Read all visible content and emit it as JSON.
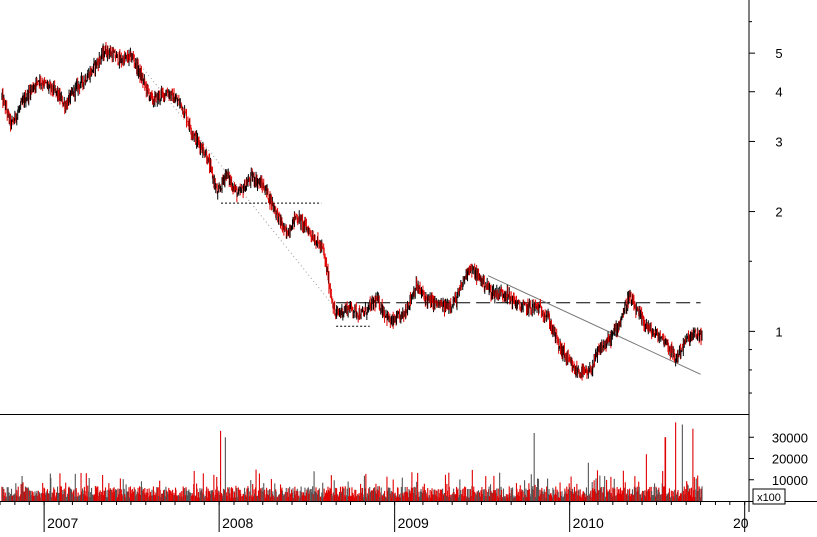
{
  "chart_data": [
    {
      "type": "candlestick",
      "title": "",
      "x_range": [
        "2006-10-01",
        "2011-01-10"
      ],
      "y_scale": "log",
      "ylim": [
        0.62,
        6.8
      ],
      "y_ticks": [
        1,
        2,
        3,
        4,
        5
      ],
      "y_tick_labels": [
        "1",
        "2",
        "3",
        "4",
        "5"
      ],
      "up_color": "#000000",
      "down_color": "#e00000",
      "price_path": [
        [
          "2006-10-05",
          3.9
        ],
        [
          "2006-10-25",
          3.3
        ],
        [
          "2006-11-20",
          3.8
        ],
        [
          "2006-12-20",
          4.3
        ],
        [
          "2007-01-25",
          4.0
        ],
        [
          "2007-02-15",
          3.7
        ],
        [
          "2007-03-10",
          4.1
        ],
        [
          "2007-04-10",
          4.5
        ],
        [
          "2007-05-10",
          5.1
        ],
        [
          "2007-06-10",
          4.8
        ],
        [
          "2007-07-05",
          4.9
        ],
        [
          "2007-07-25",
          4.3
        ],
        [
          "2007-08-15",
          3.8
        ],
        [
          "2007-09-15",
          4.0
        ],
        [
          "2007-10-15",
          3.7
        ],
        [
          "2007-11-10",
          3.1
        ],
        [
          "2007-12-05",
          2.8
        ],
        [
          "2007-12-30",
          2.2
        ],
        [
          "2008-01-15",
          2.5
        ],
        [
          "2008-02-10",
          2.2
        ],
        [
          "2008-03-10",
          2.45
        ],
        [
          "2008-04-05",
          2.3
        ],
        [
          "2008-04-25",
          2.05
        ],
        [
          "2008-05-20",
          1.75
        ],
        [
          "2008-06-10",
          1.95
        ],
        [
          "2008-07-05",
          1.8
        ],
        [
          "2008-08-05",
          1.6
        ],
        [
          "2008-08-30",
          1.1
        ],
        [
          "2008-09-30",
          1.15
        ],
        [
          "2008-10-25",
          1.1
        ],
        [
          "2008-11-25",
          1.2
        ],
        [
          "2008-12-25",
          1.05
        ],
        [
          "2009-01-20",
          1.1
        ],
        [
          "2009-02-15",
          1.3
        ],
        [
          "2009-03-10",
          1.2
        ],
        [
          "2009-04-15",
          1.15
        ],
        [
          "2009-05-10",
          1.2
        ],
        [
          "2009-06-05",
          1.45
        ],
        [
          "2009-06-30",
          1.35
        ],
        [
          "2009-07-25",
          1.25
        ],
        [
          "2009-08-20",
          1.25
        ],
        [
          "2009-09-20",
          1.15
        ],
        [
          "2009-10-25",
          1.15
        ],
        [
          "2009-11-15",
          1.1
        ],
        [
          "2009-12-10",
          0.92
        ],
        [
          "2010-01-10",
          0.8
        ],
        [
          "2010-02-10",
          0.78
        ],
        [
          "2010-03-05",
          0.9
        ],
        [
          "2010-03-25",
          0.95
        ],
        [
          "2010-04-15",
          1.05
        ],
        [
          "2010-05-05",
          1.22
        ],
        [
          "2010-05-25",
          1.1
        ],
        [
          "2010-06-20",
          1.0
        ],
        [
          "2010-07-20",
          0.95
        ],
        [
          "2010-08-10",
          0.85
        ],
        [
          "2010-09-01",
          0.95
        ],
        [
          "2010-09-20",
          0.98
        ]
      ],
      "annotations": [
        {
          "kind": "dotted-line",
          "from": [
            "2007-07-01",
            5.0
          ],
          "to": [
            "2008-09-05",
            1.12
          ]
        },
        {
          "kind": "dotted-line",
          "from": [
            "2008-01-05",
            2.1
          ],
          "to": [
            "2008-08-01",
            2.1
          ]
        },
        {
          "kind": "dotted-line",
          "from": [
            "2008-09-01",
            1.03
          ],
          "to": [
            "2008-11-10",
            1.03
          ]
        },
        {
          "kind": "dashed-line",
          "from": [
            "2008-09-01",
            1.18
          ],
          "to": [
            "2010-10-01",
            1.18
          ]
        },
        {
          "kind": "thin-line",
          "from": [
            "2009-07-15",
            1.38
          ],
          "to": [
            "2010-10-01",
            0.78
          ]
        }
      ]
    },
    {
      "type": "bar",
      "title": "",
      "ylim": [
        0,
        40000
      ],
      "y_ticks": [
        10000,
        20000,
        30000
      ],
      "y_tick_labels": [
        "10000",
        "20000",
        "30000"
      ],
      "unit_label": "x100",
      "x_tick_labels": [
        "2007",
        "2008",
        "2009",
        "2010",
        "20"
      ],
      "colors": [
        "#e00000",
        "#555555"
      ],
      "spikes": [
        [
          "2008-01-05",
          33000
        ],
        [
          "2008-01-15",
          30000
        ],
        [
          "2009-10-20",
          32000
        ],
        [
          "2010-08-10",
          37000
        ],
        [
          "2010-08-25",
          36000
        ],
        [
          "2010-09-15",
          34000
        ],
        [
          "2010-07-20",
          30000
        ],
        [
          "2010-06-10",
          22000
        ],
        [
          "2010-02-10",
          18000
        ],
        [
          "2010-09-25",
          12000
        ]
      ]
    }
  ]
}
